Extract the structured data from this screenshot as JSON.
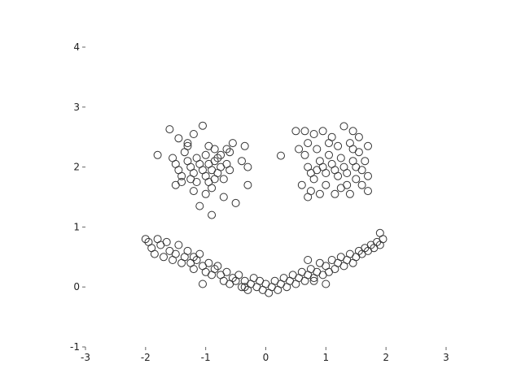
{
  "chart_data": {
    "type": "scatter",
    "title": "",
    "xlabel": "",
    "ylabel": "",
    "xlim": [
      -3,
      3
    ],
    "ylim": [
      -1,
      4
    ],
    "grid": false,
    "legend": "none",
    "marker": "open-circle",
    "marker_color": "#333333",
    "x_ticks": [
      "-3",
      "-2",
      "-1",
      "0",
      "1",
      "2",
      "3"
    ],
    "y_ticks": [
      "-1",
      "0",
      "1",
      "2",
      "3",
      "4"
    ],
    "series": [
      {
        "points": [
          [
            -1.6,
            2.63
          ],
          [
            -1.8,
            2.2
          ],
          [
            -1.45,
            2.48
          ],
          [
            -1.3,
            2.35
          ],
          [
            -1.2,
            2.55
          ],
          [
            -1.05,
            2.69
          ],
          [
            -0.95,
            2.35
          ],
          [
            -0.85,
            2.3
          ],
          [
            -0.75,
            2.2
          ],
          [
            -0.65,
            2.3
          ],
          [
            -0.55,
            2.4
          ],
          [
            -0.4,
            2.1
          ],
          [
            -0.35,
            2.35
          ],
          [
            -0.3,
            2.0
          ],
          [
            -0.3,
            1.7
          ],
          [
            -1.55,
            2.15
          ],
          [
            -1.5,
            2.05
          ],
          [
            -1.45,
            1.95
          ],
          [
            -1.4,
            1.85
          ],
          [
            -1.4,
            1.75
          ],
          [
            -1.35,
            2.25
          ],
          [
            -1.3,
            2.1
          ],
          [
            -1.25,
            2.0
          ],
          [
            -1.2,
            1.9
          ],
          [
            -1.2,
            1.6
          ],
          [
            -1.15,
            2.15
          ],
          [
            -1.1,
            2.05
          ],
          [
            -1.05,
            1.95
          ],
          [
            -1.0,
            1.85
          ],
          [
            -1.0,
            1.55
          ],
          [
            -0.95,
            2.05
          ],
          [
            -0.9,
            1.95
          ],
          [
            -0.9,
            1.65
          ],
          [
            -0.85,
            2.1
          ],
          [
            -0.8,
            1.9
          ],
          [
            -0.75,
            2.0
          ],
          [
            -0.7,
            1.8
          ],
          [
            -0.7,
            1.5
          ],
          [
            -0.65,
            2.05
          ],
          [
            -0.6,
            1.95
          ],
          [
            -1.25,
            1.8
          ],
          [
            -1.15,
            1.75
          ],
          [
            -0.95,
            1.75
          ],
          [
            -0.85,
            1.8
          ],
          [
            -1.1,
            1.35
          ],
          [
            -0.5,
            1.4
          ],
          [
            -0.9,
            1.2
          ],
          [
            -1.3,
            2.4
          ],
          [
            -0.6,
            2.25
          ],
          [
            -1.0,
            2.2
          ],
          [
            -0.8,
            2.15
          ],
          [
            -1.5,
            1.7
          ],
          [
            0.25,
            2.19
          ],
          [
            0.5,
            2.6
          ],
          [
            0.65,
            2.6
          ],
          [
            0.8,
            2.55
          ],
          [
            0.95,
            2.6
          ],
          [
            1.1,
            2.5
          ],
          [
            1.3,
            2.68
          ],
          [
            1.45,
            2.6
          ],
          [
            1.55,
            2.5
          ],
          [
            1.7,
            2.35
          ],
          [
            0.55,
            2.3
          ],
          [
            0.65,
            2.2
          ],
          [
            0.7,
            2.0
          ],
          [
            0.75,
            1.9
          ],
          [
            0.8,
            1.8
          ],
          [
            0.75,
            1.6
          ],
          [
            0.7,
            1.5
          ],
          [
            0.85,
            2.3
          ],
          [
            0.9,
            2.1
          ],
          [
            0.95,
            2.0
          ],
          [
            1.0,
            1.9
          ],
          [
            1.0,
            1.7
          ],
          [
            1.05,
            2.2
          ],
          [
            1.1,
            2.05
          ],
          [
            1.15,
            1.95
          ],
          [
            1.2,
            1.85
          ],
          [
            1.15,
            1.55
          ],
          [
            1.25,
            2.15
          ],
          [
            1.3,
            2.0
          ],
          [
            1.35,
            1.9
          ],
          [
            1.35,
            1.7
          ],
          [
            1.4,
            2.4
          ],
          [
            1.45,
            2.1
          ],
          [
            1.5,
            2.0
          ],
          [
            1.5,
            1.8
          ],
          [
            1.55,
            2.25
          ],
          [
            1.6,
            1.95
          ],
          [
            1.6,
            1.7
          ],
          [
            1.65,
            2.1
          ],
          [
            1.7,
            1.85
          ],
          [
            1.7,
            1.6
          ],
          [
            0.6,
            1.7
          ],
          [
            0.9,
            1.55
          ],
          [
            1.25,
            1.65
          ],
          [
            1.4,
            1.55
          ],
          [
            0.7,
            2.4
          ],
          [
            1.2,
            2.35
          ],
          [
            1.05,
            2.4
          ],
          [
            0.85,
            1.95
          ],
          [
            1.45,
            2.3
          ],
          [
            -2.0,
            0.8
          ],
          [
            -1.95,
            0.75
          ],
          [
            -1.9,
            0.65
          ],
          [
            -1.85,
            0.55
          ],
          [
            -1.8,
            0.8
          ],
          [
            -1.75,
            0.7
          ],
          [
            -1.7,
            0.5
          ],
          [
            -1.65,
            0.75
          ],
          [
            -1.6,
            0.6
          ],
          [
            -1.55,
            0.45
          ],
          [
            -1.5,
            0.55
          ],
          [
            -1.45,
            0.7
          ],
          [
            -1.4,
            0.4
          ],
          [
            -1.35,
            0.5
          ],
          [
            -1.3,
            0.6
          ],
          [
            -1.25,
            0.4
          ],
          [
            -1.2,
            0.3
          ],
          [
            -1.15,
            0.45
          ],
          [
            -1.1,
            0.55
          ],
          [
            -1.05,
            0.35
          ],
          [
            -1.0,
            0.25
          ],
          [
            -0.95,
            0.4
          ],
          [
            -0.9,
            0.2
          ],
          [
            -0.85,
            0.3
          ],
          [
            -0.8,
            0.35
          ],
          [
            -0.75,
            0.2
          ],
          [
            -0.7,
            0.1
          ],
          [
            -0.65,
            0.25
          ],
          [
            -0.6,
            0.05
          ],
          [
            -0.55,
            0.15
          ],
          [
            -0.5,
            0.1
          ],
          [
            -0.45,
            0.2
          ],
          [
            -0.4,
            0.0
          ],
          [
            -0.35,
            0.1
          ],
          [
            -0.3,
            -0.05
          ],
          [
            -0.25,
            0.05
          ],
          [
            -0.2,
            0.15
          ],
          [
            -0.15,
            0.0
          ],
          [
            -0.1,
            0.1
          ],
          [
            -0.05,
            -0.05
          ],
          [
            0.0,
            0.05
          ],
          [
            0.05,
            -0.1
          ],
          [
            0.1,
            0.0
          ],
          [
            0.15,
            0.1
          ],
          [
            0.2,
            -0.05
          ],
          [
            0.25,
            0.05
          ],
          [
            0.3,
            0.15
          ],
          [
            0.35,
            0.0
          ],
          [
            0.4,
            0.1
          ],
          [
            0.45,
            0.2
          ],
          [
            0.5,
            0.05
          ],
          [
            0.55,
            0.15
          ],
          [
            0.6,
            0.25
          ],
          [
            0.65,
            0.1
          ],
          [
            0.7,
            0.2
          ],
          [
            0.75,
            0.3
          ],
          [
            0.8,
            0.15
          ],
          [
            0.85,
            0.25
          ],
          [
            0.9,
            0.4
          ],
          [
            0.95,
            0.2
          ],
          [
            1.0,
            0.35
          ],
          [
            1.05,
            0.25
          ],
          [
            1.1,
            0.45
          ],
          [
            1.15,
            0.3
          ],
          [
            1.2,
            0.4
          ],
          [
            1.25,
            0.5
          ],
          [
            1.3,
            0.35
          ],
          [
            1.35,
            0.45
          ],
          [
            1.4,
            0.55
          ],
          [
            1.45,
            0.4
          ],
          [
            1.5,
            0.5
          ],
          [
            1.55,
            0.6
          ],
          [
            1.6,
            0.55
          ],
          [
            1.65,
            0.65
          ],
          [
            1.7,
            0.6
          ],
          [
            1.75,
            0.7
          ],
          [
            1.8,
            0.65
          ],
          [
            1.85,
            0.75
          ],
          [
            1.9,
            0.7
          ],
          [
            1.95,
            0.8
          ],
          [
            1.9,
            0.9
          ],
          [
            -1.05,
            0.05
          ],
          [
            -0.35,
            0.0
          ],
          [
            0.8,
            0.1
          ],
          [
            1.0,
            0.05
          ],
          [
            -1.2,
            0.5
          ],
          [
            0.7,
            0.45
          ]
        ]
      }
    ]
  }
}
